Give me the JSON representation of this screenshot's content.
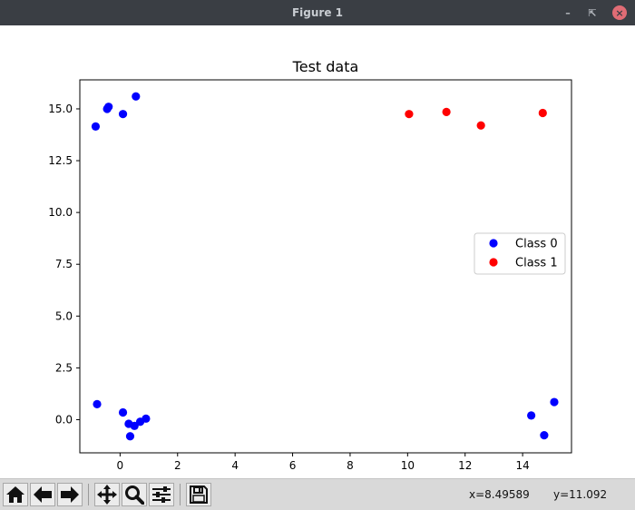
{
  "window": {
    "title": "Figure 1",
    "minimize_glyph": "–",
    "maximize_glyph": "⇱",
    "close_glyph": "×"
  },
  "toolbar": {
    "buttons": [
      "home-icon",
      "back-icon",
      "forward-icon",
      "pan-icon",
      "zoom-icon",
      "configure-subplots-icon",
      "save-icon"
    ],
    "x_readout": "x=8.49589",
    "y_readout": "y=11.092"
  },
  "chart_data": {
    "type": "scatter",
    "title": "Test data",
    "xlabel": "",
    "ylabel": "",
    "xlim": [
      -1.4,
      15.7
    ],
    "ylim": [
      -1.6,
      16.4
    ],
    "x_ticks": [
      0,
      2,
      4,
      6,
      8,
      10,
      12,
      14
    ],
    "x_tick_labels": [
      "0",
      "2",
      "4",
      "6",
      "8",
      "10",
      "12",
      "14"
    ],
    "y_ticks": [
      0,
      2.5,
      5,
      7.5,
      10,
      12.5,
      15
    ],
    "y_tick_labels": [
      "0.0",
      "2.5",
      "5.0",
      "7.5",
      "10.0",
      "12.5",
      "15.0"
    ],
    "grid": false,
    "legend_position": "center-right",
    "series": [
      {
        "name": "Class 0",
        "color": "#0000ff",
        "points": [
          [
            -0.85,
            14.15
          ],
          [
            -0.45,
            15.0
          ],
          [
            -0.4,
            15.1
          ],
          [
            0.1,
            14.75
          ],
          [
            0.55,
            15.6
          ],
          [
            -0.8,
            0.75
          ],
          [
            0.1,
            0.35
          ],
          [
            0.3,
            -0.2
          ],
          [
            0.35,
            -0.8
          ],
          [
            0.5,
            -0.3
          ],
          [
            0.7,
            -0.1
          ],
          [
            0.9,
            0.05
          ],
          [
            14.3,
            0.2
          ],
          [
            14.75,
            -0.75
          ],
          [
            15.1,
            0.85
          ]
        ]
      },
      {
        "name": "Class 1",
        "color": "#ff0000",
        "points": [
          [
            10.05,
            14.75
          ],
          [
            11.35,
            14.85
          ],
          [
            12.55,
            14.2
          ],
          [
            14.7,
            14.8
          ]
        ]
      }
    ]
  }
}
